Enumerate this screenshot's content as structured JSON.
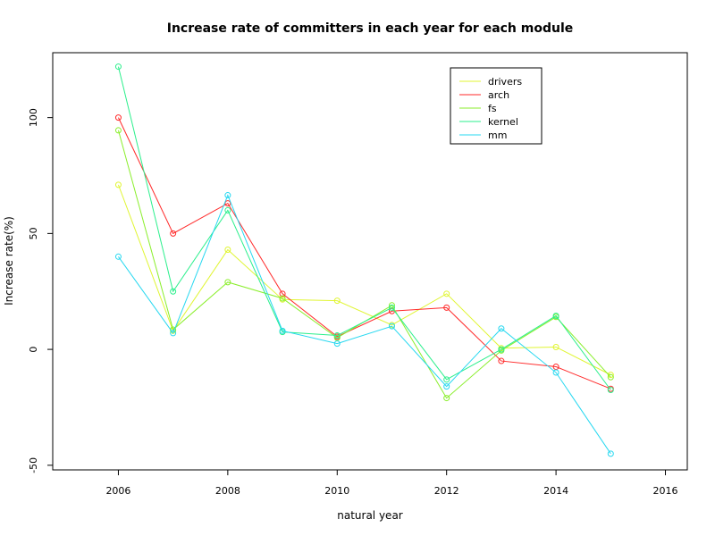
{
  "chart_data": {
    "type": "line",
    "title": "Increase rate of committers in each year for each module",
    "xlabel": "natural year",
    "ylabel": "Increase rate(%)",
    "xlim": [
      2004.8,
      2016.4
    ],
    "ylim": [
      -52,
      128
    ],
    "x_ticks": [
      2006,
      2008,
      2010,
      2012,
      2014,
      2016
    ],
    "y_ticks": [
      -50,
      0,
      50,
      100
    ],
    "x": [
      2006,
      2007,
      2008,
      2009,
      2010,
      2011,
      2012,
      2013,
      2014,
      2015
    ],
    "legend_position": "top-right",
    "grid": false,
    "series": [
      {
        "name": "drivers",
        "color": "#e0f531",
        "values": [
          71,
          8,
          43,
          21.5,
          21,
          10.5,
          24,
          0.5,
          1,
          -11
        ]
      },
      {
        "name": "arch",
        "color": "#ff2a2a",
        "values": [
          100,
          50,
          63,
          24,
          5.5,
          16.5,
          18,
          -5,
          -7.5,
          -17
        ]
      },
      {
        "name": "fs",
        "color": "#8aee2b",
        "values": [
          94.5,
          8.5,
          29,
          22,
          5,
          19,
          -21,
          -0.5,
          14,
          -12
        ]
      },
      {
        "name": "kernel",
        "color": "#2bef8c",
        "values": [
          122,
          25,
          60,
          7.5,
          6,
          18,
          -13,
          0,
          14.5,
          -17.5
        ]
      },
      {
        "name": "mm",
        "color": "#27d8f0",
        "values": [
          40,
          7,
          66.5,
          8,
          2.5,
          10,
          -16,
          9,
          -10,
          -45
        ]
      }
    ]
  }
}
